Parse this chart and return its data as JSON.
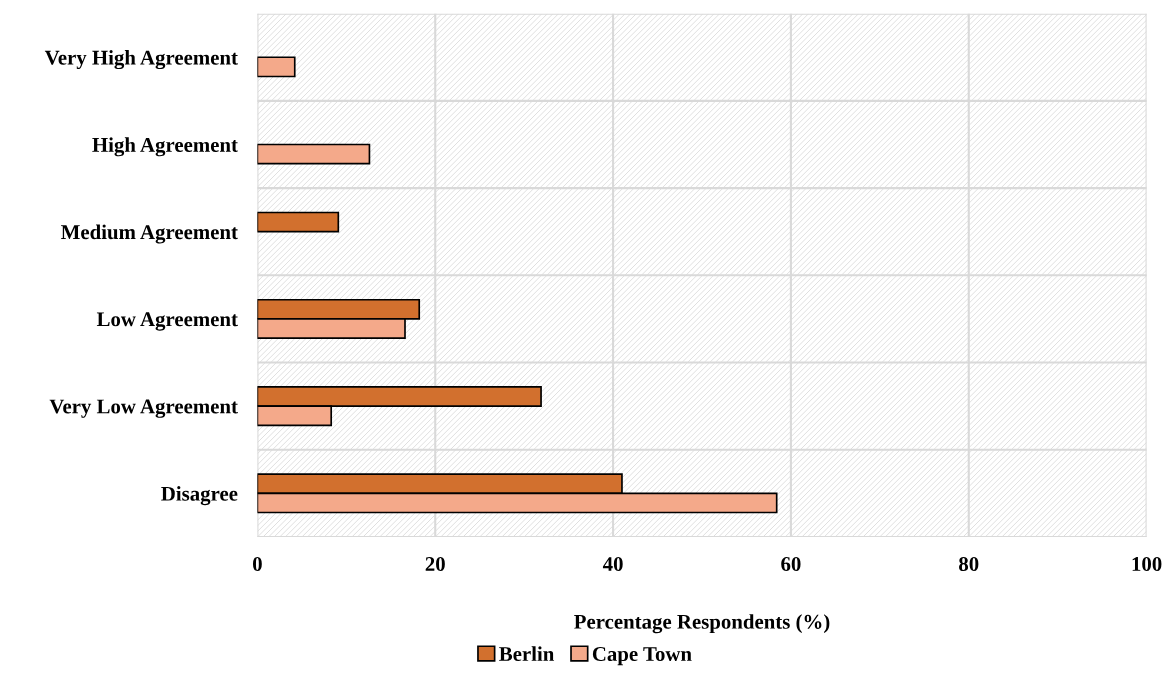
{
  "chart_data": {
    "type": "bar",
    "orientation": "horizontal",
    "xlabel": "Percentage Respondents (%)",
    "categories": [
      "Very High Agreement",
      "High Agreement",
      "Medium Agreement",
      "Low Agreement",
      "Very Low Agreement",
      "Disagree"
    ],
    "series": [
      {
        "name": "Berlin",
        "color": "#d2702e",
        "values": [
          null,
          null,
          9.1,
          18.2,
          31.9,
          41.0
        ]
      },
      {
        "name": "Cape Town",
        "color": "#f4a98a",
        "values": [
          4.2,
          12.6,
          null,
          16.6,
          8.3,
          58.4
        ]
      }
    ],
    "xlim": [
      0,
      100
    ],
    "xticks": [
      0,
      20,
      40,
      60,
      80,
      100
    ],
    "grid": true,
    "legend": "bottom"
  }
}
